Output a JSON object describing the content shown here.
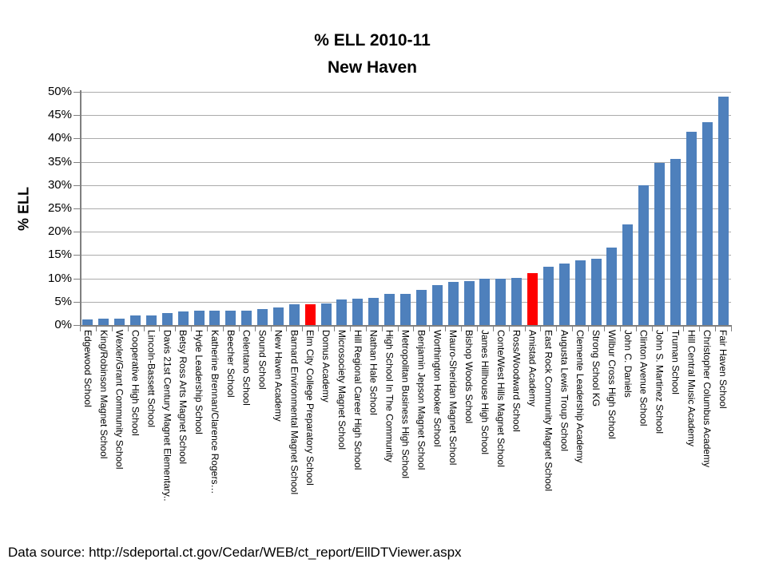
{
  "title": {
    "line1": "% ELL 2010-11",
    "line2": "New Haven"
  },
  "y_axis": {
    "label": "% ELL",
    "ticks": [
      "0%",
      "5%",
      "10%",
      "15%",
      "20%",
      "25%",
      "30%",
      "35%",
      "40%",
      "45%",
      "50%"
    ]
  },
  "footer": {
    "text": "Data source: http://sdeportal.ct.gov/Cedar/WEB/ct_report/EllDTViewer.aspx"
  },
  "colors": {
    "bar_blue": "#4e80bc",
    "bar_red": "#fe0000",
    "gridline": "#ababab",
    "axis": "#808080"
  },
  "chart_data": {
    "type": "bar",
    "title": "% ELL 2010-11 New Haven",
    "xlabel": "",
    "ylabel": "% ELL",
    "ylim": [
      0,
      50
    ],
    "y_tick_step": 5,
    "grid": true,
    "legend": false,
    "categories": [
      "Edgewood School",
      "King/Robinson Magnet School",
      "Wexler/Grant Community School",
      "Cooperative High School",
      "Lincoln-Bassett School",
      "Davis 21st Century Magnet Elementary..",
      "Betsy Ross Arts Magnet School",
      "Hyde Leadership School",
      "Katherine Brennan/Clarence Rogers…",
      "Beecher School",
      "Celentano School",
      "Sound School",
      "New Haven Academy",
      "Barnard Environmental Magnet School",
      "Elm City College Preparatory School",
      "Domus Academy",
      "Microsociety Magnet School",
      "Hill Regional Career High School",
      "Nathan Hale School",
      "High School In The Community",
      "Metropolitan Business High School",
      "Benjamin Jepson Magnet School",
      "Worthington Hooker School",
      "Mauro-Sheridan Magnet School",
      "Bishop Woods School",
      "James Hillhouse High School",
      "Conte/West Hills Magnet School",
      "Ross/Woodward School",
      "Amistad Academy",
      "East Rock Community Magnet School",
      "Augusta Lewis Troup School",
      "Clemente Leadership Academy",
      "Strong School KG",
      "Wilbur Cross High School",
      "John C. Daniels",
      "Clinton Avenue School",
      "John S. Martinez School",
      "Truman School",
      "Hill Central Music Academy",
      "Christopher Columbus Academy",
      "Fair Haven School"
    ],
    "values": [
      1.2,
      1.4,
      1.4,
      2.0,
      2.1,
      2.5,
      2.9,
      3.0,
      3.0,
      3.1,
      3.1,
      3.4,
      3.8,
      4.4,
      4.5,
      4.6,
      5.4,
      5.7,
      5.8,
      6.6,
      6.7,
      7.5,
      8.6,
      9.2,
      9.4,
      10.0,
      10.0,
      10.1,
      11.1,
      12.5,
      13.2,
      13.8,
      14.2,
      16.6,
      21.5,
      30.0,
      34.7,
      35.7,
      41.4,
      43.5,
      49.0
    ],
    "bar_color": "#4e80bc",
    "highlight_color": "#fe0000",
    "highlighted_categories": [
      "Elm City College Preparatory School",
      "Amistad Academy"
    ]
  }
}
